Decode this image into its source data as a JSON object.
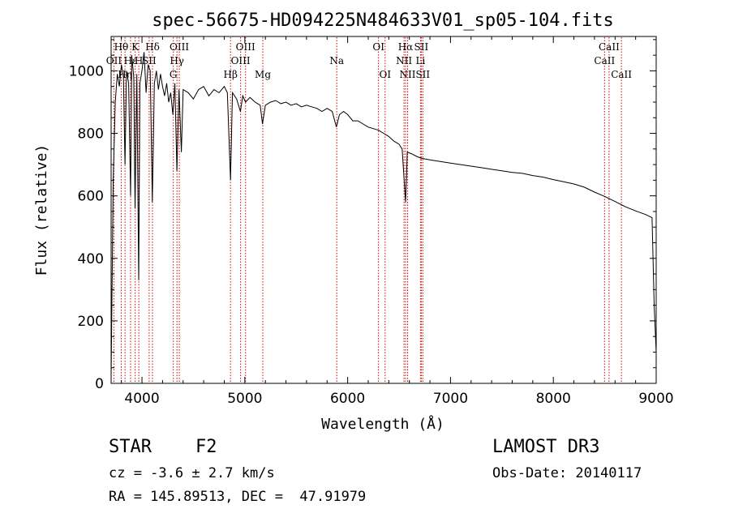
{
  "chart_data": {
    "type": "line",
    "title": "spec-56675-HD094225N484633V01_sp05-104.fits",
    "xlabel": "Wavelength (Å)",
    "ylabel": "Flux (relative)",
    "xlim": [
      3700,
      9000
    ],
    "ylim": [
      0,
      1110
    ],
    "xticks": [
      4000,
      5000,
      6000,
      7000,
      8000,
      9000
    ],
    "yticks": [
      0,
      200,
      400,
      600,
      800,
      1000
    ],
    "grid": false,
    "series": [
      {
        "name": "flux",
        "points": [
          [
            3700,
            20
          ],
          [
            3720,
            640
          ],
          [
            3740,
            900
          ],
          [
            3760,
            990
          ],
          [
            3780,
            950
          ],
          [
            3800,
            1020
          ],
          [
            3820,
            980
          ],
          [
            3835,
            700
          ],
          [
            3850,
            1000
          ],
          [
            3870,
            960
          ],
          [
            3889,
            600
          ],
          [
            3900,
            1050
          ],
          [
            3920,
            980
          ],
          [
            3933,
            560
          ],
          [
            3950,
            990
          ],
          [
            3968,
            330
          ],
          [
            3980,
            960
          ],
          [
            4000,
            1000
          ],
          [
            4020,
            1060
          ],
          [
            4040,
            930
          ],
          [
            4060,
            1020
          ],
          [
            4080,
            1000
          ],
          [
            4101,
            580
          ],
          [
            4120,
            960
          ],
          [
            4140,
            1000
          ],
          [
            4160,
            940
          ],
          [
            4180,
            990
          ],
          [
            4200,
            950
          ],
          [
            4220,
            920
          ],
          [
            4240,
            960
          ],
          [
            4260,
            900
          ],
          [
            4280,
            930
          ],
          [
            4300,
            860
          ],
          [
            4320,
            960
          ],
          [
            4340,
            680
          ],
          [
            4360,
            940
          ],
          [
            4383,
            740
          ],
          [
            4400,
            940
          ],
          [
            4450,
            930
          ],
          [
            4500,
            910
          ],
          [
            4550,
            940
          ],
          [
            4600,
            950
          ],
          [
            4650,
            920
          ],
          [
            4700,
            940
          ],
          [
            4750,
            930
          ],
          [
            4800,
            950
          ],
          [
            4830,
            930
          ],
          [
            4861,
            650
          ],
          [
            4880,
            930
          ],
          [
            4920,
            910
          ],
          [
            4957,
            870
          ],
          [
            4980,
            920
          ],
          [
            5007,
            900
          ],
          [
            5050,
            915
          ],
          [
            5100,
            900
          ],
          [
            5150,
            890
          ],
          [
            5172,
            830
          ],
          [
            5200,
            890
          ],
          [
            5250,
            900
          ],
          [
            5300,
            905
          ],
          [
            5350,
            895
          ],
          [
            5400,
            900
          ],
          [
            5450,
            890
          ],
          [
            5500,
            895
          ],
          [
            5550,
            885
          ],
          [
            5600,
            890
          ],
          [
            5650,
            885
          ],
          [
            5700,
            880
          ],
          [
            5750,
            870
          ],
          [
            5800,
            880
          ],
          [
            5850,
            870
          ],
          [
            5890,
            820
          ],
          [
            5920,
            860
          ],
          [
            5960,
            870
          ],
          [
            6000,
            860
          ],
          [
            6050,
            840
          ],
          [
            6100,
            840
          ],
          [
            6150,
            830
          ],
          [
            6200,
            820
          ],
          [
            6250,
            815
          ],
          [
            6300,
            810
          ],
          [
            6350,
            800
          ],
          [
            6400,
            790
          ],
          [
            6450,
            775
          ],
          [
            6500,
            765
          ],
          [
            6530,
            750
          ],
          [
            6563,
            580
          ],
          [
            6580,
            740
          ],
          [
            6620,
            735
          ],
          [
            6680,
            725
          ],
          [
            6720,
            720
          ],
          [
            6800,
            715
          ],
          [
            6900,
            710
          ],
          [
            7000,
            705
          ],
          [
            7100,
            700
          ],
          [
            7200,
            695
          ],
          [
            7300,
            690
          ],
          [
            7400,
            685
          ],
          [
            7500,
            680
          ],
          [
            7600,
            675
          ],
          [
            7700,
            672
          ],
          [
            7800,
            665
          ],
          [
            7900,
            660
          ],
          [
            8000,
            652
          ],
          [
            8100,
            645
          ],
          [
            8200,
            638
          ],
          [
            8300,
            628
          ],
          [
            8400,
            612
          ],
          [
            8500,
            598
          ],
          [
            8600,
            582
          ],
          [
            8700,
            565
          ],
          [
            8800,
            552
          ],
          [
            8900,
            540
          ],
          [
            8960,
            530
          ],
          [
            8980,
            250
          ],
          [
            9000,
            100
          ]
        ]
      }
    ],
    "lines": [
      {
        "label": "Hθ",
        "wave": 3798,
        "row": 0
      },
      {
        "label": "OII",
        "wave": 3727,
        "row": 1
      },
      {
        "label": "Hη",
        "wave": 3835,
        "row": 2
      },
      {
        "label": "K",
        "wave": 3934,
        "row": 0
      },
      {
        "label": "Hε",
        "wave": 3889,
        "row": 1
      },
      {
        "label": "H",
        "wave": 3969,
        "row": 1
      },
      {
        "label": "Hδ",
        "wave": 4102,
        "row": 0
      },
      {
        "label": "SII",
        "wave": 4070,
        "row": 1
      },
      {
        "label": "OIII",
        "wave": 4363,
        "row": 0
      },
      {
        "label": "Hγ",
        "wave": 4340,
        "row": 1
      },
      {
        "label": "G",
        "wave": 4305,
        "row": 2
      },
      {
        "label": "OIII",
        "wave": 5007,
        "row": 0
      },
      {
        "label": "OIII",
        "wave": 4959,
        "row": 1
      },
      {
        "label": "Hβ",
        "wave": 4861,
        "row": 2
      },
      {
        "label": "Mg",
        "wave": 5175,
        "row": 2
      },
      {
        "label": "Na",
        "wave": 5894,
        "row": 1
      },
      {
        "label": "OI",
        "wave": 6300,
        "row": 0
      },
      {
        "label": "OI",
        "wave": 6364,
        "row": 2
      },
      {
        "label": "Hα",
        "wave": 6563,
        "row": 0
      },
      {
        "label": "NII",
        "wave": 6548,
        "row": 1
      },
      {
        "label": "NII",
        "wave": 6583,
        "row": 2
      },
      {
        "label": "SII",
        "wave": 6716,
        "row": 0
      },
      {
        "label": "Li",
        "wave": 6708,
        "row": 1
      },
      {
        "label": "SII",
        "wave": 6731,
        "row": 2
      },
      {
        "label": "CaII",
        "wave": 8542,
        "row": 0
      },
      {
        "label": "CaII",
        "wave": 8498,
        "row": 1
      },
      {
        "label": "CaII",
        "wave": 8662,
        "row": 2
      }
    ],
    "line_color": "#d40000"
  },
  "info": {
    "object_class": "STAR",
    "subclass": "F2",
    "survey": "LAMOST DR3",
    "redshift": "cz = -3.6 ± 2.7 km/s",
    "obs_date": "Obs-Date: 20140117",
    "coords": "RA = 145.89513, DEC =  47.91979"
  }
}
